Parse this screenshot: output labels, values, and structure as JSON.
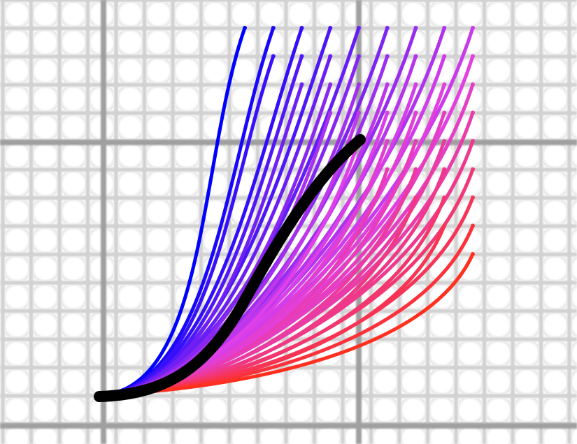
{
  "scene": {
    "background": "#ffffff",
    "grid": {
      "minor_color": "#d2d2d2",
      "major_color": "#a0a0a0",
      "cell_highlight": "#ffffff"
    },
    "fan": {
      "columns": 9,
      "rows": 9,
      "color_start": "#0000ff",
      "color_mid": "#e040e8",
      "color_end": "#ff3020"
    },
    "highlight_curve": {
      "color": "#000000"
    }
  }
}
